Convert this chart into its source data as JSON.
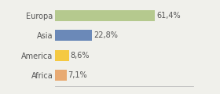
{
  "categories": [
    "Europa",
    "Asia",
    "America",
    "Africa"
  ],
  "values": [
    61.4,
    22.8,
    8.6,
    7.1
  ],
  "labels": [
    "61,4%",
    "22,8%",
    "8,6%",
    "7,1%"
  ],
  "bar_colors": [
    "#b5c98e",
    "#6b89b8",
    "#f5c942",
    "#e8aa72"
  ],
  "background_color": "#f0f0eb",
  "xlim": [
    0,
    85
  ],
  "bar_height": 0.55,
  "label_fontsize": 7.0,
  "tick_fontsize": 7.0
}
